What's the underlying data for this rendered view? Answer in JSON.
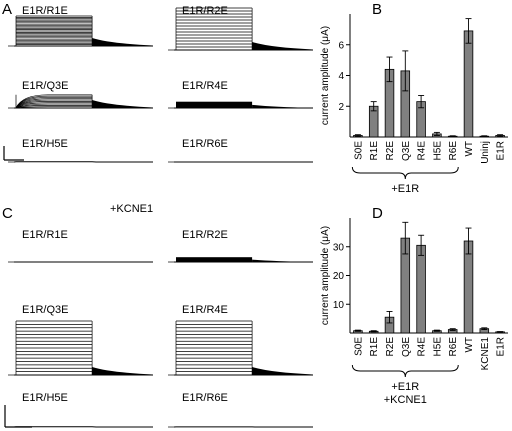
{
  "figure": {
    "panels": {
      "a": "A",
      "b": "B",
      "c": "C",
      "d": "D"
    },
    "traces_top": [
      {
        "id": "t1",
        "label": "E1R/R1E",
        "kind": "family",
        "amp": 1.0,
        "sweeps": 22
      },
      {
        "id": "t2",
        "label": "E1R/R2E",
        "kind": "family",
        "amp": 1.0,
        "sweeps": 14
      },
      {
        "id": "t3",
        "label": "E1R/Q3E",
        "kind": "family_curved",
        "amp": 0.6,
        "sweeps": 10
      },
      {
        "id": "t4",
        "label": "E1R/R4E",
        "kind": "block",
        "amp": 0.45,
        "sweeps": 14
      },
      {
        "id": "t5",
        "label": "E1R/H5E",
        "kind": "flat",
        "amp": 0.06,
        "sweeps": 1
      },
      {
        "id": "t6",
        "label": "E1R/R6E",
        "kind": "flat",
        "amp": 0.02,
        "sweeps": 1
      }
    ],
    "traces_bottom": [
      {
        "id": "u1",
        "label": "E1R/R1E",
        "kind": "flat",
        "amp": 0.02,
        "sweeps": 1
      },
      {
        "id": "u2",
        "label": "E1R/R2E",
        "kind": "block",
        "amp": 0.3,
        "sweeps": 10
      },
      {
        "id": "u3",
        "label": "E1R/Q3E",
        "kind": "family",
        "amp": 1.0,
        "sweeps": 16
      },
      {
        "id": "u4",
        "label": "E1R/R4E",
        "kind": "family",
        "amp": 1.0,
        "sweeps": 16
      },
      {
        "id": "u5",
        "label": "E1R/H5E",
        "kind": "flat",
        "amp": 0.06,
        "sweeps": 1
      },
      {
        "id": "u6",
        "label": "E1R/R6E",
        "kind": "flat",
        "amp": 0.03,
        "sweeps": 1
      }
    ],
    "kcne1_label": "+KCNE1",
    "colors": {
      "bar": "#808080",
      "line": "#000000"
    }
  },
  "chart_data": [
    {
      "type": "bar",
      "panel": "B",
      "categories": [
        "S0E",
        "R1E",
        "R2E",
        "Q3E",
        "R4E",
        "H5E",
        "R6E",
        "WT",
        "Uninj",
        "E1R"
      ],
      "values": [
        0.1,
        2.0,
        4.4,
        4.3,
        2.3,
        0.2,
        0.05,
        6.9,
        0.05,
        0.1
      ],
      "errors": [
        0.05,
        0.3,
        0.8,
        1.3,
        0.4,
        0.1,
        0.03,
        0.8,
        0.03,
        0.05
      ],
      "ylabel": "current amplitude (μA)",
      "ylim": [
        0,
        8
      ],
      "yticks": [
        2,
        4,
        6
      ],
      "brace_label_1": "+E1R",
      "brace_label_2": ""
    },
    {
      "type": "bar",
      "panel": "D",
      "categories": [
        "S0E",
        "R1E",
        "R2E",
        "Q3E",
        "R4E",
        "H5E",
        "R6E",
        "WT",
        "KCNE1",
        "E1R"
      ],
      "values": [
        0.8,
        0.6,
        5.5,
        33.0,
        30.5,
        0.8,
        1.2,
        32.0,
        1.5,
        0.4
      ],
      "errors": [
        0.2,
        0.2,
        2.0,
        5.5,
        3.5,
        0.2,
        0.3,
        4.5,
        0.3,
        0.1
      ],
      "ylabel": "current amplitude (μA)",
      "ylim": [
        0,
        40
      ],
      "yticks": [
        10,
        20,
        30
      ],
      "brace_label_1": "+E1R",
      "brace_label_2": "+KCNE1"
    }
  ]
}
